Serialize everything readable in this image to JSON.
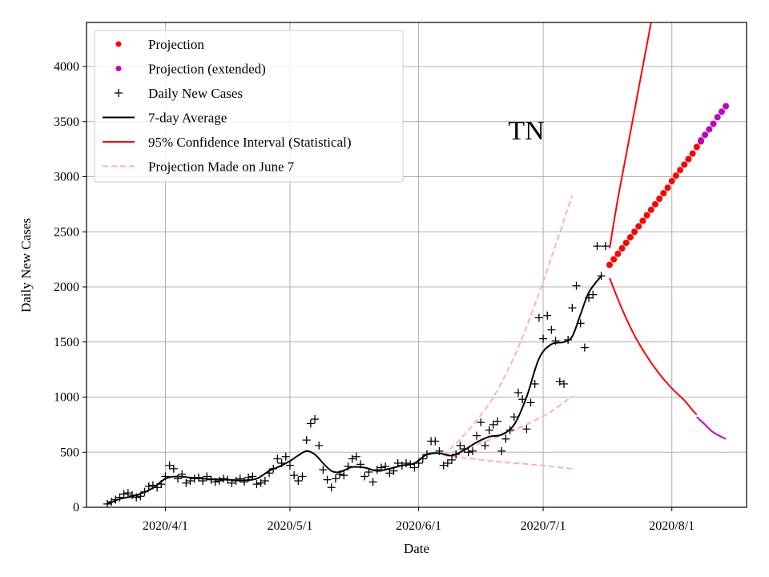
{
  "chart_data": {
    "type": "line",
    "title": "TN",
    "xlabel": "Date",
    "ylabel": "Daily New Cases",
    "xlim": [
      "2020-03-13",
      "2020-08-19"
    ],
    "ylim": [
      0,
      4400
    ],
    "grid": true,
    "legend_position": "top-left",
    "x_ticks": [
      "2020-04-01",
      "2020-05-01",
      "2020-06-01",
      "2020-07-01",
      "2020-08-01"
    ],
    "x_tick_labels": [
      "2020/4/1",
      "2020/5/1",
      "2020/6/1",
      "2020/7/1",
      "2020/8/1"
    ],
    "y_ticks": [
      0,
      500,
      1000,
      1500,
      2000,
      2500,
      3000,
      3500,
      4000
    ],
    "y_tick_labels": [
      "0",
      "500",
      "1000",
      "1500",
      "2000",
      "2500",
      "3000",
      "3500",
      "4000"
    ],
    "legend": [
      {
        "label": "Projection",
        "marker": "dot",
        "color": "#ff0000"
      },
      {
        "label": "Projection (extended)",
        "marker": "dot",
        "color": "#bf00bf"
      },
      {
        "label": "Daily New Cases",
        "marker": "plus",
        "color": "#000000"
      },
      {
        "label": "7-day Average",
        "marker": "line",
        "color": "#000000"
      },
      {
        "label": "95% Confidence Interval (Statistical)",
        "marker": "line",
        "color": "#ff0000"
      },
      {
        "label": "Projection Made on June 7",
        "marker": "dashed",
        "color": "#ffb0b0"
      }
    ],
    "daily_new_cases": [
      [
        "2020-03-18",
        30
      ],
      [
        "2020-03-19",
        50
      ],
      [
        "2020-03-20",
        70
      ],
      [
        "2020-03-21",
        90
      ],
      [
        "2020-03-22",
        120
      ],
      [
        "2020-03-23",
        130
      ],
      [
        "2020-03-24",
        110
      ],
      [
        "2020-03-25",
        90
      ],
      [
        "2020-03-26",
        100
      ],
      [
        "2020-03-27",
        140
      ],
      [
        "2020-03-28",
        190
      ],
      [
        "2020-03-29",
        200
      ],
      [
        "2020-03-30",
        180
      ],
      [
        "2020-03-31",
        210
      ],
      [
        "2020-04-01",
        280
      ],
      [
        "2020-04-02",
        380
      ],
      [
        "2020-04-03",
        350
      ],
      [
        "2020-04-04",
        260
      ],
      [
        "2020-04-05",
        300
      ],
      [
        "2020-04-06",
        220
      ],
      [
        "2020-04-07",
        240
      ],
      [
        "2020-04-08",
        260
      ],
      [
        "2020-04-09",
        270
      ],
      [
        "2020-04-10",
        240
      ],
      [
        "2020-04-11",
        280
      ],
      [
        "2020-04-12",
        250
      ],
      [
        "2020-04-13",
        230
      ],
      [
        "2020-04-14",
        240
      ],
      [
        "2020-04-15",
        260
      ],
      [
        "2020-04-16",
        250
      ],
      [
        "2020-04-17",
        220
      ],
      [
        "2020-04-18",
        240
      ],
      [
        "2020-04-19",
        260
      ],
      [
        "2020-04-20",
        230
      ],
      [
        "2020-04-21",
        270
      ],
      [
        "2020-04-22",
        280
      ],
      [
        "2020-04-23",
        210
      ],
      [
        "2020-04-24",
        220
      ],
      [
        "2020-04-25",
        240
      ],
      [
        "2020-04-26",
        310
      ],
      [
        "2020-04-27",
        350
      ],
      [
        "2020-04-28",
        440
      ],
      [
        "2020-04-29",
        400
      ],
      [
        "2020-04-30",
        460
      ],
      [
        "2020-05-01",
        380
      ],
      [
        "2020-05-02",
        290
      ],
      [
        "2020-05-03",
        240
      ],
      [
        "2020-05-04",
        280
      ],
      [
        "2020-05-05",
        610
      ],
      [
        "2020-05-06",
        760
      ],
      [
        "2020-05-07",
        800
      ],
      [
        "2020-05-08",
        560
      ],
      [
        "2020-05-09",
        340
      ],
      [
        "2020-05-10",
        250
      ],
      [
        "2020-05-11",
        180
      ],
      [
        "2020-05-12",
        260
      ],
      [
        "2020-05-13",
        300
      ],
      [
        "2020-05-14",
        290
      ],
      [
        "2020-05-15",
        370
      ],
      [
        "2020-05-16",
        440
      ],
      [
        "2020-05-17",
        460
      ],
      [
        "2020-05-18",
        390
      ],
      [
        "2020-05-19",
        280
      ],
      [
        "2020-05-20",
        320
      ],
      [
        "2020-05-21",
        230
      ],
      [
        "2020-05-22",
        340
      ],
      [
        "2020-05-23",
        360
      ],
      [
        "2020-05-24",
        370
      ],
      [
        "2020-05-25",
        310
      ],
      [
        "2020-05-26",
        330
      ],
      [
        "2020-05-27",
        400
      ],
      [
        "2020-05-28",
        380
      ],
      [
        "2020-05-29",
        400
      ],
      [
        "2020-05-30",
        390
      ],
      [
        "2020-05-31",
        360
      ],
      [
        "2020-06-01",
        400
      ],
      [
        "2020-06-02",
        440
      ],
      [
        "2020-06-03",
        480
      ],
      [
        "2020-06-04",
        600
      ],
      [
        "2020-06-05",
        600
      ],
      [
        "2020-06-06",
        510
      ],
      [
        "2020-06-07",
        380
      ],
      [
        "2020-06-08",
        400
      ],
      [
        "2020-06-09",
        430
      ],
      [
        "2020-06-10",
        480
      ],
      [
        "2020-06-11",
        560
      ],
      [
        "2020-06-12",
        530
      ],
      [
        "2020-06-13",
        500
      ],
      [
        "2020-06-14",
        510
      ],
      [
        "2020-06-15",
        650
      ],
      [
        "2020-06-16",
        770
      ],
      [
        "2020-06-17",
        560
      ],
      [
        "2020-06-18",
        700
      ],
      [
        "2020-06-19",
        750
      ],
      [
        "2020-06-20",
        780
      ],
      [
        "2020-06-21",
        510
      ],
      [
        "2020-06-22",
        620
      ],
      [
        "2020-06-23",
        700
      ],
      [
        "2020-06-24",
        820
      ],
      [
        "2020-06-25",
        1040
      ],
      [
        "2020-06-26",
        980
      ],
      [
        "2020-06-27",
        710
      ],
      [
        "2020-06-28",
        950
      ],
      [
        "2020-06-29",
        1120
      ],
      [
        "2020-06-30",
        1720
      ],
      [
        "2020-07-01",
        1530
      ],
      [
        "2020-07-02",
        1740
      ],
      [
        "2020-07-03",
        1610
      ],
      [
        "2020-07-04",
        1510
      ],
      [
        "2020-07-05",
        1140
      ],
      [
        "2020-07-06",
        1120
      ],
      [
        "2020-07-07",
        1520
      ],
      [
        "2020-07-08",
        1810
      ],
      [
        "2020-07-09",
        2010
      ],
      [
        "2020-07-10",
        1670
      ],
      [
        "2020-07-11",
        1450
      ],
      [
        "2020-07-12",
        1900
      ],
      [
        "2020-07-13",
        1930
      ],
      [
        "2020-07-14",
        2370
      ],
      [
        "2020-07-15",
        2100
      ],
      [
        "2020-07-16",
        2370
      ]
    ],
    "seven_day_average": [
      [
        "2020-03-18",
        30
      ],
      [
        "2020-03-21",
        75
      ],
      [
        "2020-03-25",
        110
      ],
      [
        "2020-03-29",
        175
      ],
      [
        "2020-04-01",
        260
      ],
      [
        "2020-04-04",
        280
      ],
      [
        "2020-04-08",
        265
      ],
      [
        "2020-04-12",
        255
      ],
      [
        "2020-04-16",
        250
      ],
      [
        "2020-04-20",
        245
      ],
      [
        "2020-04-23",
        260
      ],
      [
        "2020-04-26",
        330
      ],
      [
        "2020-04-29",
        380
      ],
      [
        "2020-05-01",
        420
      ],
      [
        "2020-05-03",
        470
      ],
      [
        "2020-05-05",
        510
      ],
      [
        "2020-05-07",
        480
      ],
      [
        "2020-05-09",
        400
      ],
      [
        "2020-05-11",
        330
      ],
      [
        "2020-05-13",
        320
      ],
      [
        "2020-05-16",
        365
      ],
      [
        "2020-05-19",
        360
      ],
      [
        "2020-05-22",
        330
      ],
      [
        "2020-05-25",
        350
      ],
      [
        "2020-05-28",
        380
      ],
      [
        "2020-05-31",
        400
      ],
      [
        "2020-06-03",
        480
      ],
      [
        "2020-06-06",
        490
      ],
      [
        "2020-06-09",
        470
      ],
      [
        "2020-06-12",
        520
      ],
      [
        "2020-06-15",
        590
      ],
      [
        "2020-06-18",
        640
      ],
      [
        "2020-06-21",
        660
      ],
      [
        "2020-06-24",
        750
      ],
      [
        "2020-06-27",
        1000
      ],
      [
        "2020-06-30",
        1350
      ],
      [
        "2020-07-03",
        1480
      ],
      [
        "2020-07-06",
        1500
      ],
      [
        "2020-07-08",
        1550
      ],
      [
        "2020-07-10",
        1750
      ],
      [
        "2020-07-12",
        1950
      ],
      [
        "2020-07-15",
        2100
      ]
    ],
    "projection": [
      [
        "2020-07-17",
        2200
      ],
      [
        "2020-07-18",
        2250
      ],
      [
        "2020-07-19",
        2300
      ],
      [
        "2020-07-20",
        2350
      ],
      [
        "2020-07-21",
        2400
      ],
      [
        "2020-07-22",
        2450
      ],
      [
        "2020-07-23",
        2500
      ],
      [
        "2020-07-24",
        2550
      ],
      [
        "2020-07-25",
        2600
      ],
      [
        "2020-07-26",
        2650
      ],
      [
        "2020-07-27",
        2700
      ],
      [
        "2020-07-28",
        2750
      ],
      [
        "2020-07-29",
        2800
      ],
      [
        "2020-07-30",
        2850
      ],
      [
        "2020-07-31",
        2900
      ],
      [
        "2020-08-01",
        2960
      ],
      [
        "2020-08-02",
        3010
      ],
      [
        "2020-08-03",
        3060
      ],
      [
        "2020-08-04",
        3110
      ],
      [
        "2020-08-05",
        3160
      ],
      [
        "2020-08-06",
        3210
      ],
      [
        "2020-08-07",
        3270
      ],
      [
        "2020-08-08",
        3320
      ]
    ],
    "projection_extended": [
      [
        "2020-08-08",
        3330
      ],
      [
        "2020-08-09",
        3380
      ],
      [
        "2020-08-10",
        3430
      ],
      [
        "2020-08-11",
        3480
      ],
      [
        "2020-08-12",
        3540
      ],
      [
        "2020-08-13",
        3590
      ],
      [
        "2020-08-14",
        3640
      ]
    ],
    "ci_upper": [
      [
        "2020-07-17",
        2350
      ],
      [
        "2020-07-19",
        2800
      ],
      [
        "2020-07-21",
        3200
      ],
      [
        "2020-07-23",
        3600
      ],
      [
        "2020-07-25",
        4000
      ],
      [
        "2020-07-27",
        4400
      ]
    ],
    "ci_lower": [
      [
        "2020-07-17",
        2080
      ],
      [
        "2020-07-20",
        1800
      ],
      [
        "2020-07-23",
        1560
      ],
      [
        "2020-07-26",
        1370
      ],
      [
        "2020-07-29",
        1210
      ],
      [
        "2020-08-01",
        1080
      ],
      [
        "2020-08-04",
        970
      ],
      [
        "2020-08-06",
        880
      ],
      [
        "2020-08-07",
        840
      ]
    ],
    "ci_lower_extended": [
      [
        "2020-08-07",
        820
      ],
      [
        "2020-08-09",
        750
      ],
      [
        "2020-08-11",
        680
      ],
      [
        "2020-08-14",
        620
      ]
    ],
    "june7_projection": {
      "upper": [
        [
          "2020-06-07",
          470
        ],
        [
          "2020-06-13",
          700
        ],
        [
          "2020-06-19",
          1000
        ],
        [
          "2020-06-25",
          1450
        ],
        [
          "2020-07-01",
          2050
        ],
        [
          "2020-07-08",
          2830
        ]
      ],
      "middle": [
        [
          "2020-06-07",
          470
        ],
        [
          "2020-06-14",
          560
        ],
        [
          "2020-06-21",
          650
        ],
        [
          "2020-06-28",
          770
        ],
        [
          "2020-07-03",
          870
        ],
        [
          "2020-07-08",
          1010
        ]
      ],
      "lower": [
        [
          "2020-06-07",
          470
        ],
        [
          "2020-06-14",
          440
        ],
        [
          "2020-06-21",
          410
        ],
        [
          "2020-06-28",
          390
        ],
        [
          "2020-07-03",
          370
        ],
        [
          "2020-07-08",
          350
        ]
      ]
    }
  }
}
